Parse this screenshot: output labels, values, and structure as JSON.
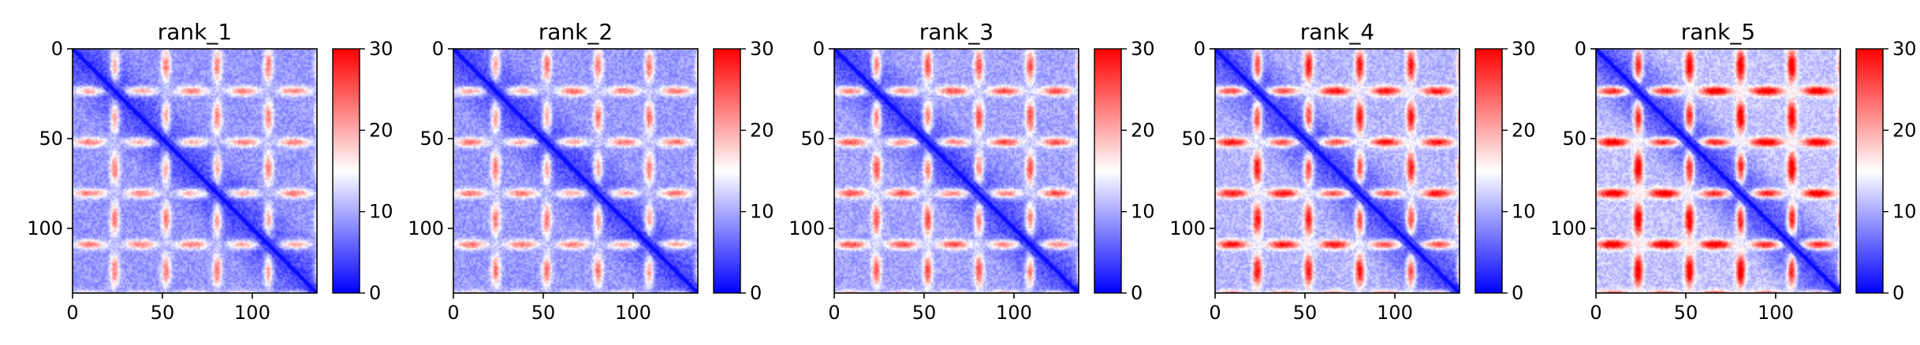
{
  "chart_data": [
    {
      "type": "heatmap",
      "title": "rank_1",
      "n": 136,
      "xlim": [
        0,
        136
      ],
      "ylim": [
        136,
        0
      ],
      "xticks": [
        0,
        50,
        100
      ],
      "yticks": [
        0,
        50,
        100
      ],
      "colorbar": {
        "min": 0,
        "max": 30,
        "ticks": [
          0,
          10,
          20,
          30
        ],
        "colormap": "bwr"
      }
    },
    {
      "type": "heatmap",
      "title": "rank_2",
      "n": 136,
      "xlim": [
        0,
        136
      ],
      "ylim": [
        136,
        0
      ],
      "xticks": [
        0,
        50,
        100
      ],
      "yticks": [
        0,
        50,
        100
      ],
      "colorbar": {
        "min": 0,
        "max": 30,
        "ticks": [
          0,
          10,
          20,
          30
        ],
        "colormap": "bwr"
      }
    },
    {
      "type": "heatmap",
      "title": "rank_3",
      "n": 136,
      "xlim": [
        0,
        136
      ],
      "ylim": [
        136,
        0
      ],
      "xticks": [
        0,
        50,
        100
      ],
      "yticks": [
        0,
        50,
        100
      ],
      "colorbar": {
        "min": 0,
        "max": 30,
        "ticks": [
          0,
          10,
          20,
          30
        ],
        "colormap": "bwr"
      }
    },
    {
      "type": "heatmap",
      "title": "rank_4",
      "n": 136,
      "xlim": [
        0,
        136
      ],
      "ylim": [
        136,
        0
      ],
      "xticks": [
        0,
        50,
        100
      ],
      "yticks": [
        0,
        50,
        100
      ],
      "colorbar": {
        "min": 0,
        "max": 30,
        "ticks": [
          0,
          10,
          20,
          30
        ],
        "colormap": "bwr"
      }
    },
    {
      "type": "heatmap",
      "title": "rank_5",
      "n": 136,
      "xlim": [
        0,
        136
      ],
      "ylim": [
        136,
        0
      ],
      "xticks": [
        0,
        50,
        100
      ],
      "yticks": [
        0,
        50,
        100
      ],
      "colorbar": {
        "min": 0,
        "max": 30,
        "ticks": [
          0,
          10,
          20,
          30
        ],
        "colormap": "bwr"
      }
    }
  ],
  "colors": {
    "low": "#0000ff",
    "mid": "#ffffff",
    "high": "#ff0000",
    "axis": "#000000"
  }
}
